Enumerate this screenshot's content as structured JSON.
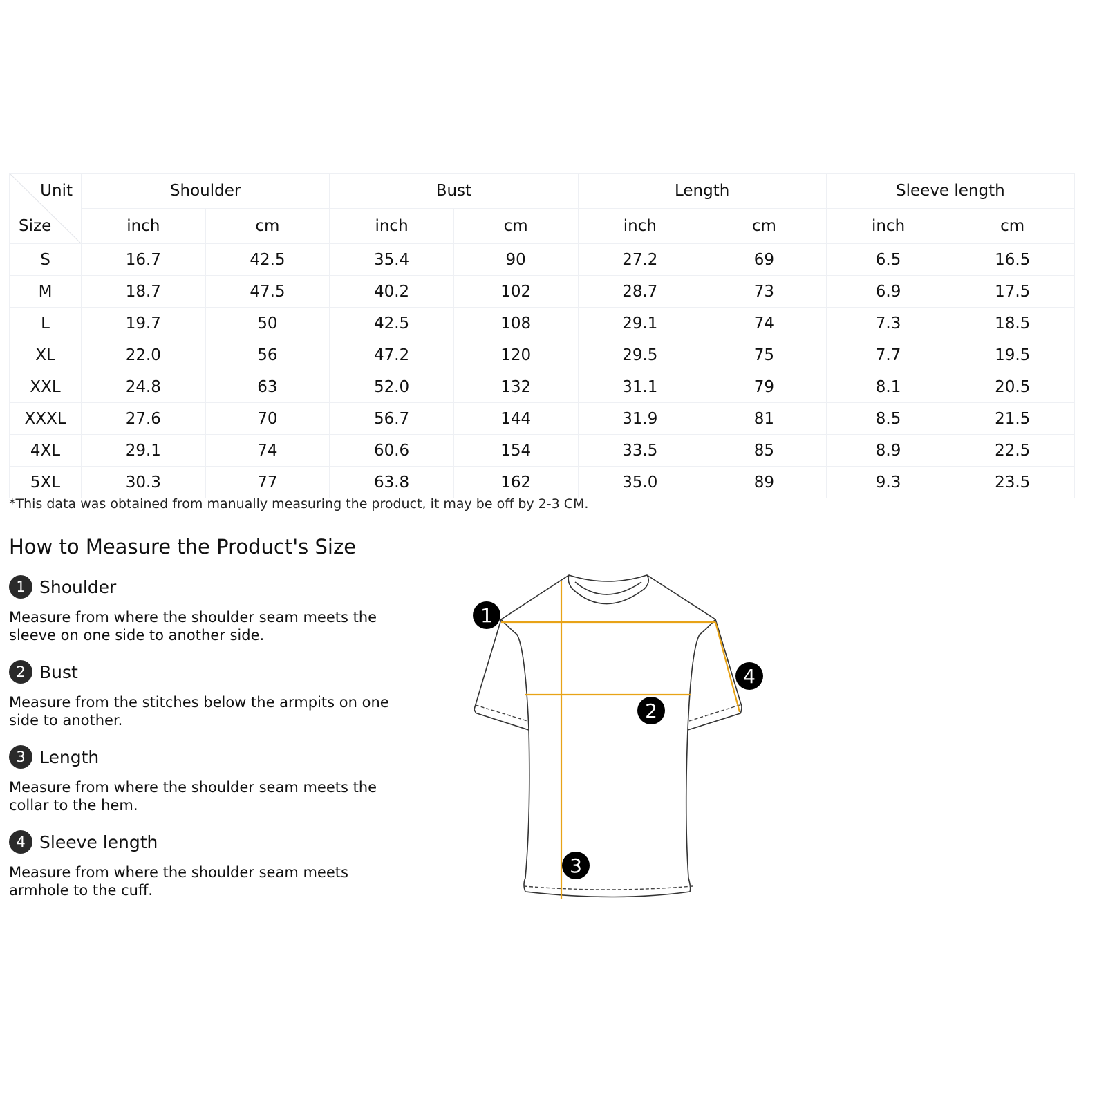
{
  "table": {
    "corner": {
      "unit": "Unit",
      "size": "Size"
    },
    "groups": [
      "Shoulder",
      "Bust",
      "Length",
      "Sleeve length"
    ],
    "units": [
      "inch",
      "cm"
    ],
    "rows": [
      {
        "size": "S",
        "values": [
          "16.7",
          "42.5",
          "35.4",
          "90",
          "27.2",
          "69",
          "6.5",
          "16.5"
        ]
      },
      {
        "size": "M",
        "values": [
          "18.7",
          "47.5",
          "40.2",
          "102",
          "28.7",
          "73",
          "6.9",
          "17.5"
        ]
      },
      {
        "size": "L",
        "values": [
          "19.7",
          "50",
          "42.5",
          "108",
          "29.1",
          "74",
          "7.3",
          "18.5"
        ]
      },
      {
        "size": "XL",
        "values": [
          "22.0",
          "56",
          "47.2",
          "120",
          "29.5",
          "75",
          "7.7",
          "19.5"
        ]
      },
      {
        "size": "XXL",
        "values": [
          "24.8",
          "63",
          "52.0",
          "132",
          "31.1",
          "79",
          "8.1",
          "20.5"
        ]
      },
      {
        "size": "XXXL",
        "values": [
          "27.6",
          "70",
          "56.7",
          "144",
          "31.9",
          "81",
          "8.5",
          "21.5"
        ]
      },
      {
        "size": "4XL",
        "values": [
          "29.1",
          "74",
          "60.6",
          "154",
          "33.5",
          "85",
          "8.9",
          "22.5"
        ]
      },
      {
        "size": "5XL",
        "values": [
          "30.3",
          "77",
          "63.8",
          "162",
          "35.0",
          "89",
          "9.3",
          "23.5"
        ]
      }
    ]
  },
  "note": "*This data was obtained from manually measuring the product, it may be off by 2-3 CM.",
  "guide": {
    "title": "How to Measure the Product's Size",
    "items": [
      {
        "num": "1",
        "label": "Shoulder",
        "desc": "Measure from where the shoulder seam meets the sleeve on one side to another side."
      },
      {
        "num": "2",
        "label": "Bust",
        "desc": "Measure from the stitches below the armpits on one side to another."
      },
      {
        "num": "3",
        "label": "Length",
        "desc": "Measure from where the shoulder seam meets the collar to the hem."
      },
      {
        "num": "4",
        "label": "Sleeve length",
        "desc": "Measure from where the shoulder seam meets armhole to the cuff."
      }
    ]
  },
  "diagram": {
    "markers": [
      "1",
      "2",
      "3",
      "4"
    ],
    "line_color": "#e8a317",
    "icon": "t-shirt-outline"
  }
}
